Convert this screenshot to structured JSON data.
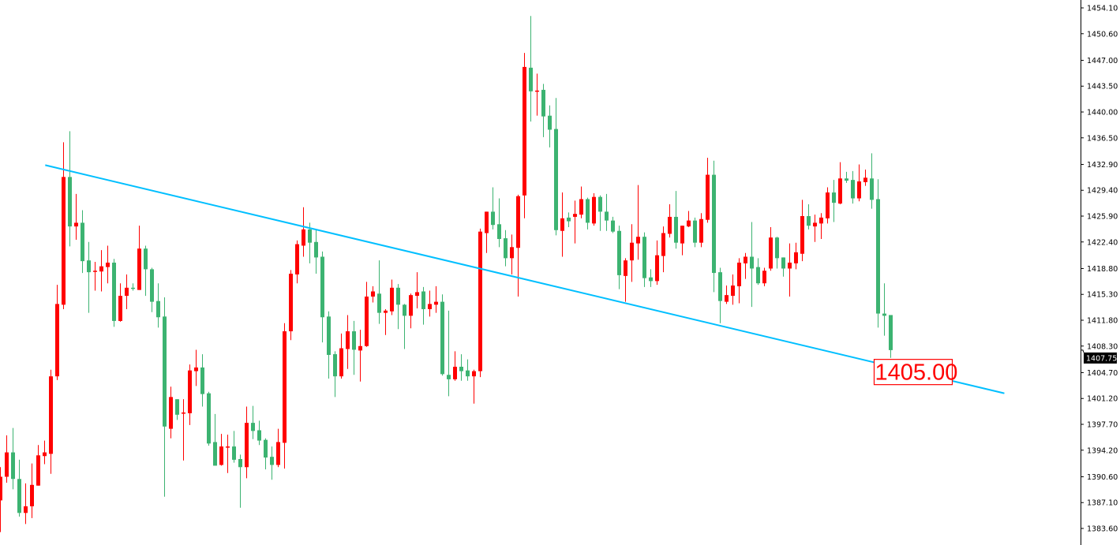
{
  "chart_data": {
    "type": "candlestick",
    "title": "",
    "xlabel": "",
    "ylabel": "",
    "ylim": [
      1383.6,
      1454.1
    ],
    "grid": false,
    "legend": "none",
    "colors": {
      "up": "#FF0000",
      "down": "#3CB371",
      "trendline": "#00BFFF",
      "axis": "#000000",
      "background": "#FFFFFF"
    },
    "y_ticks": [
      "1454.10",
      "1450.60",
      "1447.00",
      "1443.50",
      "1440.00",
      "1436.50",
      "1432.90",
      "1429.40",
      "1425.90",
      "1422.40",
      "1418.80",
      "1415.30",
      "1411.80",
      "1408.30",
      "1404.70",
      "1401.20",
      "1397.70",
      "1394.20",
      "1390.60",
      "1387.10",
      "1383.60"
    ],
    "columns": [
      "open",
      "high",
      "low",
      "close"
    ],
    "candles": [
      [
        1387.4,
        1391.9,
        1383.1,
        1390.6
      ],
      [
        1390.6,
        1396.2,
        1389.8,
        1393.9
      ],
      [
        1393.9,
        1397.2,
        1388.9,
        1390.3
      ],
      [
        1390.3,
        1392.9,
        1385.2,
        1385.7
      ],
      [
        1385.7,
        1389.7,
        1384.2,
        1386.6
      ],
      [
        1386.6,
        1392.4,
        1385.0,
        1389.5
      ],
      [
        1389.4,
        1394.9,
        1389.4,
        1393.5
      ],
      [
        1393.4,
        1395.5,
        1392.3,
        1393.9
      ],
      [
        1393.7,
        1405.1,
        1391.0,
        1404.2
      ],
      [
        1404.2,
        1416.6,
        1403.7,
        1414.0
      ],
      [
        1413.9,
        1435.9,
        1413.3,
        1431.2
      ],
      [
        1431.2,
        1437.4,
        1421.8,
        1424.5
      ],
      [
        1424.5,
        1428.9,
        1422.7,
        1425.0
      ],
      [
        1425.0,
        1426.7,
        1418.2,
        1419.8
      ],
      [
        1419.9,
        1422.4,
        1412.8,
        1418.3
      ],
      [
        1418.4,
        1419.7,
        1415.8,
        1418.5
      ],
      [
        1418.4,
        1421.3,
        1415.7,
        1419.1
      ],
      [
        1419.0,
        1421.9,
        1416.8,
        1419.6
      ],
      [
        1419.6,
        1420.1,
        1410.9,
        1411.7
      ],
      [
        1411.7,
        1416.8,
        1411.6,
        1415.1
      ],
      [
        1415.1,
        1418.0,
        1413.3,
        1416.2
      ],
      [
        1416.2,
        1416.8,
        1415.8,
        1416.1
      ],
      [
        1415.9,
        1424.6,
        1415.9,
        1421.5
      ],
      [
        1421.5,
        1421.9,
        1415.1,
        1418.7
      ],
      [
        1418.7,
        1418.9,
        1412.9,
        1414.3
      ],
      [
        1414.4,
        1416.8,
        1410.8,
        1412.2
      ],
      [
        1412.3,
        1414.9,
        1387.9,
        1397.4
      ],
      [
        1397.1,
        1402.8,
        1395.8,
        1401.4
      ],
      [
        1401.1,
        1401.1,
        1398.3,
        1399.0
      ],
      [
        1399.2,
        1401.1,
        1392.8,
        1399.3
      ],
      [
        1399.2,
        1405.8,
        1397.6,
        1405.0
      ],
      [
        1404.9,
        1407.8,
        1402.9,
        1405.4
      ],
      [
        1405.4,
        1407.2,
        1400.1,
        1401.8
      ],
      [
        1401.9,
        1402.1,
        1394.8,
        1395.1
      ],
      [
        1395.3,
        1399.1,
        1392.1,
        1392.1
      ],
      [
        1392.2,
        1396.4,
        1392.1,
        1394.7
      ],
      [
        1394.6,
        1396.3,
        1391.1,
        1394.7
      ],
      [
        1394.7,
        1396.8,
        1392.5,
        1392.9
      ],
      [
        1393.0,
        1393.6,
        1386.4,
        1391.9
      ],
      [
        1391.9,
        1400.1,
        1390.4,
        1397.9
      ],
      [
        1397.9,
        1400.2,
        1395.7,
        1396.8
      ],
      [
        1396.9,
        1398.2,
        1394.9,
        1395.5
      ],
      [
        1395.6,
        1395.8,
        1391.6,
        1393.2
      ],
      [
        1393.3,
        1394.7,
        1390.2,
        1392.2
      ],
      [
        1392.2,
        1397.1,
        1391.9,
        1395.3
      ],
      [
        1395.2,
        1411.4,
        1391.7,
        1410.3
      ],
      [
        1410.3,
        1418.6,
        1409.1,
        1418.1
      ],
      [
        1418.0,
        1422.6,
        1416.8,
        1422.1
      ],
      [
        1421.9,
        1427.1,
        1420.4,
        1424.1
      ],
      [
        1424.1,
        1425.0,
        1419.5,
        1422.3
      ],
      [
        1422.4,
        1424.1,
        1418.1,
        1420.3
      ],
      [
        1420.4,
        1421.1,
        1408.8,
        1412.2
      ],
      [
        1412.3,
        1413.0,
        1403.9,
        1407.1
      ],
      [
        1407.2,
        1407.6,
        1401.4,
        1404.2
      ],
      [
        1404.2,
        1410.0,
        1403.9,
        1408.0
      ],
      [
        1407.9,
        1412.5,
        1405.2,
        1410.3
      ],
      [
        1410.3,
        1411.7,
        1404.4,
        1407.8
      ],
      [
        1407.7,
        1410.5,
        1403.5,
        1408.3
      ],
      [
        1408.3,
        1417.0,
        1408.2,
        1415.0
      ],
      [
        1415.0,
        1416.4,
        1414.2,
        1415.7
      ],
      [
        1415.4,
        1419.9,
        1411.3,
        1412.8
      ],
      [
        1412.8,
        1413.3,
        1409.8,
        1413.1
      ],
      [
        1413.0,
        1417.3,
        1412.5,
        1416.2
      ],
      [
        1416.2,
        1416.7,
        1410.6,
        1413.9
      ],
      [
        1413.9,
        1414.0,
        1407.9,
        1412.4
      ],
      [
        1412.4,
        1415.4,
        1410.7,
        1415.2
      ],
      [
        1415.1,
        1418.3,
        1413.4,
        1415.6
      ],
      [
        1415.7,
        1416.3,
        1411.2,
        1413.3
      ],
      [
        1413.3,
        1415.8,
        1412.3,
        1414.0
      ],
      [
        1413.9,
        1416.4,
        1412.8,
        1414.3
      ],
      [
        1414.3,
        1415.3,
        1404.3,
        1404.5
      ],
      [
        1404.4,
        1413.1,
        1401.5,
        1403.8
      ],
      [
        1403.8,
        1407.6,
        1403.6,
        1405.5
      ],
      [
        1405.5,
        1407.2,
        1403.6,
        1404.9
      ],
      [
        1405.0,
        1406.5,
        1403.6,
        1404.2
      ],
      [
        1404.2,
        1405.1,
        1400.5,
        1404.9
      ],
      [
        1404.9,
        1424.2,
        1404.1,
        1423.8
      ],
      [
        1423.6,
        1426.5,
        1420.9,
        1426.5
      ],
      [
        1426.5,
        1429.8,
        1424.1,
        1424.7
      ],
      [
        1424.8,
        1428.3,
        1421.7,
        1422.8
      ],
      [
        1422.9,
        1424.0,
        1419.1,
        1420.2
      ],
      [
        1420.2,
        1423.4,
        1418.0,
        1421.7
      ],
      [
        1421.6,
        1428.8,
        1415.0,
        1428.6
      ],
      [
        1428.7,
        1448.0,
        1425.6,
        1446.1
      ],
      [
        1446.0,
        1453.0,
        1438.7,
        1442.8
      ],
      [
        1442.8,
        1445.2,
        1439.5,
        1442.9
      ],
      [
        1443.0,
        1443.8,
        1436.6,
        1439.4
      ],
      [
        1439.5,
        1440.9,
        1435.2,
        1437.6
      ],
      [
        1437.7,
        1441.9,
        1423.3,
        1424.0
      ],
      [
        1423.9,
        1429.1,
        1420.4,
        1425.6
      ],
      [
        1425.7,
        1426.4,
        1424.4,
        1425.2
      ],
      [
        1425.8,
        1428.0,
        1422.2,
        1426.2
      ],
      [
        1426.1,
        1429.9,
        1425.6,
        1428.2
      ],
      [
        1428.2,
        1428.4,
        1424.1,
        1425.0
      ],
      [
        1424.9,
        1429.0,
        1424.6,
        1428.5
      ],
      [
        1428.5,
        1428.7,
        1423.9,
        1426.5
      ],
      [
        1426.5,
        1428.9,
        1423.9,
        1425.3
      ],
      [
        1425.3,
        1425.8,
        1423.6,
        1423.8
      ],
      [
        1423.9,
        1424.6,
        1416.0,
        1417.9
      ],
      [
        1417.8,
        1420.2,
        1414.3,
        1419.9
      ],
      [
        1419.9,
        1424.8,
        1417.0,
        1422.3
      ],
      [
        1422.2,
        1430.1,
        1420.0,
        1423.1
      ],
      [
        1423.1,
        1423.7,
        1416.3,
        1417.5
      ],
      [
        1417.6,
        1418.7,
        1416.3,
        1417.1
      ],
      [
        1417.1,
        1422.6,
        1416.6,
        1420.6
      ],
      [
        1420.5,
        1424.5,
        1418.3,
        1423.6
      ],
      [
        1423.5,
        1427.5,
        1423.0,
        1425.8
      ],
      [
        1425.8,
        1429.3,
        1421.5,
        1422.3
      ],
      [
        1422.2,
        1424.6,
        1420.6,
        1424.6
      ],
      [
        1424.5,
        1426.6,
        1424.4,
        1425.3
      ],
      [
        1425.3,
        1425.7,
        1421.7,
        1422.3
      ],
      [
        1422.3,
        1426.3,
        1421.7,
        1425.5
      ],
      [
        1425.4,
        1433.8,
        1425.0,
        1431.5
      ],
      [
        1431.5,
        1433.4,
        1415.6,
        1418.2
      ],
      [
        1418.3,
        1418.9,
        1411.4,
        1414.4
      ],
      [
        1414.3,
        1416.5,
        1414.0,
        1415.2
      ],
      [
        1415.1,
        1418.0,
        1413.9,
        1416.5
      ],
      [
        1416.4,
        1420.2,
        1414.1,
        1419.6
      ],
      [
        1419.5,
        1420.9,
        1417.4,
        1420.4
      ],
      [
        1420.4,
        1425.1,
        1413.6,
        1418.8
      ],
      [
        1419.0,
        1420.2,
        1416.6,
        1416.8
      ],
      [
        1416.8,
        1418.9,
        1416.4,
        1418.5
      ],
      [
        1418.8,
        1424.4,
        1418.5,
        1423.0
      ],
      [
        1423.0,
        1423.1,
        1418.8,
        1420.2
      ],
      [
        1420.3,
        1420.3,
        1417.7,
        1418.8
      ],
      [
        1418.8,
        1422.2,
        1415.0,
        1419.6
      ],
      [
        1419.5,
        1422.3,
        1418.7,
        1421.0
      ],
      [
        1420.8,
        1428.1,
        1419.8,
        1425.9
      ],
      [
        1425.9,
        1427.5,
        1424.1,
        1424.6
      ],
      [
        1424.5,
        1426.1,
        1422.4,
        1425.0
      ],
      [
        1424.9,
        1426.3,
        1422.8,
        1425.7
      ],
      [
        1425.6,
        1429.8,
        1424.9,
        1429.1
      ],
      [
        1429.1,
        1430.8,
        1425.1,
        1427.7
      ],
      [
        1427.6,
        1433.2,
        1427.5,
        1431.0
      ],
      [
        1431.0,
        1431.9,
        1430.4,
        1430.7
      ],
      [
        1430.8,
        1432.0,
        1427.6,
        1428.3
      ],
      [
        1428.3,
        1432.9,
        1427.9,
        1430.6
      ],
      [
        1430.5,
        1432.2,
        1430.0,
        1431.1
      ],
      [
        1431.0,
        1434.4,
        1426.9,
        1428.1
      ],
      [
        1428.2,
        1430.9,
        1410.8,
        1412.7
      ],
      [
        1412.7,
        1416.8,
        1409.7,
        1412.4
      ],
      [
        1412.5,
        1412.5,
        1406.7,
        1407.75
      ]
    ],
    "trendline": {
      "start": {
        "bar": 7.1,
        "price": 1432.8
      },
      "end": {
        "bar": 159,
        "price": 1401.9
      }
    },
    "current_price": "1407.75",
    "alert_label": {
      "text": "1405.00",
      "bar": 144.5,
      "price": 1405.0
    }
  }
}
